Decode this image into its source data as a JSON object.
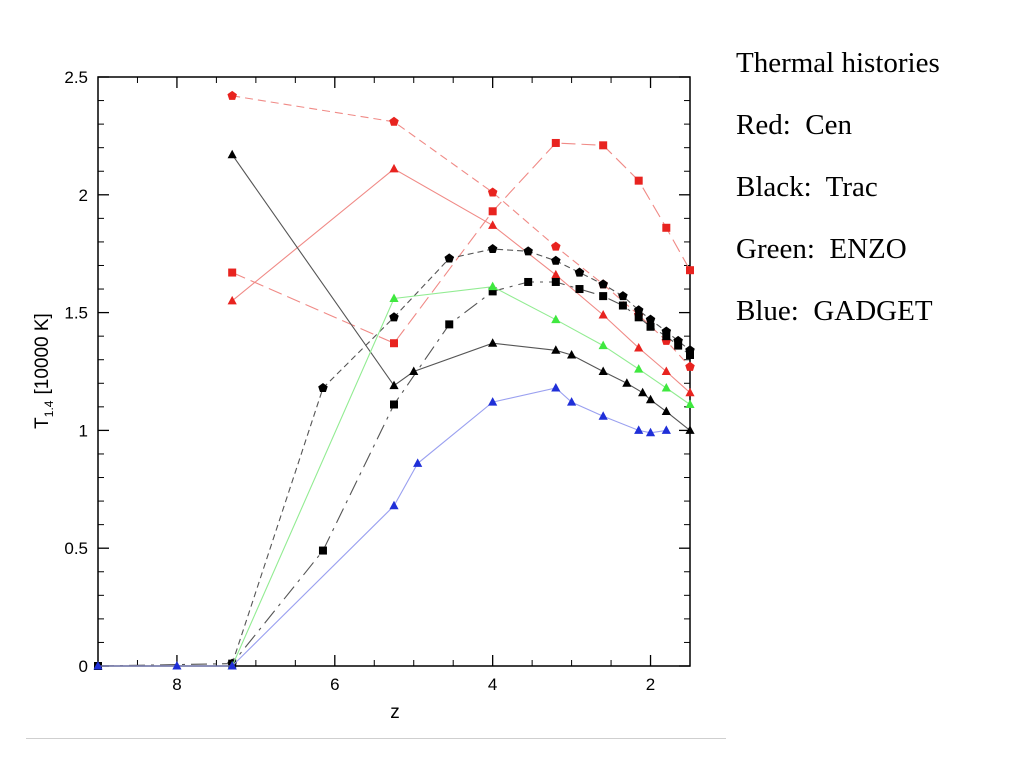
{
  "legend_text": {
    "title": "Thermal histories",
    "lines": [
      "Red:  Cen",
      "Black:  Trac",
      "Green:  ENZO",
      "Blue:  GADGET"
    ]
  },
  "colors": {
    "red": "#e8231f",
    "black": "#000000",
    "green": "#3fe83f",
    "blue": "#1f2fd8",
    "line_red": "#f08a86",
    "line_black": "#555555",
    "line_green": "#92ec92",
    "line_blue": "#9aa0f0"
  },
  "chart_data": {
    "type": "line",
    "xlabel": "z",
    "ylabel": "T",
    "ylabel_sub": "1.4",
    "ylabel_unit": "[10000 K]",
    "xlim": [
      9.0,
      1.5
    ],
    "ylim": [
      0,
      2.5
    ],
    "x_ticks": [
      8,
      6,
      4,
      2
    ],
    "y_ticks": [
      0,
      0.5,
      1,
      1.5,
      2,
      2.5
    ],
    "y_tick_labels": [
      "0",
      "0.5",
      "1",
      "1.5",
      "2",
      "2.5"
    ],
    "grid": false,
    "series": [
      {
        "color": "red",
        "marker": "pentagon",
        "dash": "8,5",
        "points": [
          [
            7.3,
            2.42
          ],
          [
            5.25,
            2.31
          ],
          [
            4.0,
            2.01
          ],
          [
            3.2,
            1.78
          ],
          [
            2.6,
            1.62
          ],
          [
            2.15,
            1.49
          ],
          [
            1.8,
            1.38
          ],
          [
            1.5,
            1.27
          ]
        ]
      },
      {
        "color": "red",
        "marker": "triangle",
        "dash": "",
        "points": [
          [
            7.3,
            1.55
          ],
          [
            5.25,
            2.11
          ],
          [
            4.0,
            1.87
          ],
          [
            3.2,
            1.66
          ],
          [
            2.6,
            1.49
          ],
          [
            2.15,
            1.35
          ],
          [
            1.8,
            1.25
          ],
          [
            1.5,
            1.16
          ]
        ]
      },
      {
        "color": "red",
        "marker": "square",
        "dash": "14,6",
        "points": [
          [
            7.3,
            1.67
          ],
          [
            5.25,
            1.37
          ],
          [
            4.0,
            1.93
          ],
          [
            3.2,
            2.22
          ],
          [
            2.6,
            2.21
          ],
          [
            2.15,
            2.06
          ],
          [
            1.8,
            1.86
          ],
          [
            1.5,
            1.68
          ]
        ]
      },
      {
        "color": "black",
        "marker": "pentagon",
        "dash": "6,4",
        "points": [
          [
            7.3,
            0.01
          ],
          [
            6.15,
            1.18
          ],
          [
            5.25,
            1.48
          ],
          [
            4.55,
            1.73
          ],
          [
            4.0,
            1.77
          ],
          [
            3.55,
            1.76
          ],
          [
            3.2,
            1.72
          ],
          [
            2.9,
            1.67
          ],
          [
            2.6,
            1.62
          ],
          [
            2.35,
            1.57
          ],
          [
            2.15,
            1.51
          ],
          [
            2.0,
            1.47
          ],
          [
            1.8,
            1.42
          ],
          [
            1.65,
            1.38
          ],
          [
            1.5,
            1.34
          ]
        ]
      },
      {
        "color": "black",
        "marker": "square",
        "dash": "16,6,3,6",
        "points": [
          [
            9.0,
            0.0
          ],
          [
            7.3,
            0.01
          ],
          [
            6.15,
            0.49
          ],
          [
            5.25,
            1.11
          ],
          [
            4.55,
            1.45
          ],
          [
            4.0,
            1.59
          ],
          [
            3.55,
            1.63
          ],
          [
            3.2,
            1.63
          ],
          [
            2.9,
            1.6
          ],
          [
            2.6,
            1.57
          ],
          [
            2.35,
            1.53
          ],
          [
            2.15,
            1.48
          ],
          [
            2.0,
            1.44
          ],
          [
            1.8,
            1.4
          ],
          [
            1.65,
            1.36
          ],
          [
            1.5,
            1.32
          ]
        ]
      },
      {
        "color": "black",
        "marker": "triangle",
        "dash": "",
        "points": [
          [
            7.3,
            2.17
          ],
          [
            5.25,
            1.19
          ],
          [
            5.0,
            1.25
          ],
          [
            4.0,
            1.37
          ],
          [
            3.2,
            1.34
          ],
          [
            3.0,
            1.32
          ],
          [
            2.6,
            1.25
          ],
          [
            2.3,
            1.2
          ],
          [
            2.1,
            1.16
          ],
          [
            2.0,
            1.13
          ],
          [
            1.8,
            1.08
          ],
          [
            1.5,
            1.0
          ]
        ]
      },
      {
        "color": "green",
        "marker": "triangle",
        "dash": "",
        "points": [
          [
            7.3,
            0.0
          ],
          [
            5.25,
            1.56
          ],
          [
            4.0,
            1.61
          ],
          [
            3.2,
            1.47
          ],
          [
            2.6,
            1.36
          ],
          [
            2.15,
            1.26
          ],
          [
            1.8,
            1.18
          ],
          [
            1.5,
            1.11
          ]
        ]
      },
      {
        "color": "blue",
        "marker": "triangle",
        "dash": "",
        "points": [
          [
            9.0,
            0.0
          ],
          [
            8.0,
            0.0
          ],
          [
            7.3,
            0.0
          ],
          [
            5.25,
            0.68
          ],
          [
            4.95,
            0.86
          ],
          [
            4.0,
            1.12
          ],
          [
            3.2,
            1.18
          ],
          [
            3.0,
            1.12
          ],
          [
            2.6,
            1.06
          ],
          [
            2.15,
            1.0
          ],
          [
            2.0,
            0.99
          ],
          [
            1.8,
            1.0
          ]
        ]
      }
    ]
  }
}
